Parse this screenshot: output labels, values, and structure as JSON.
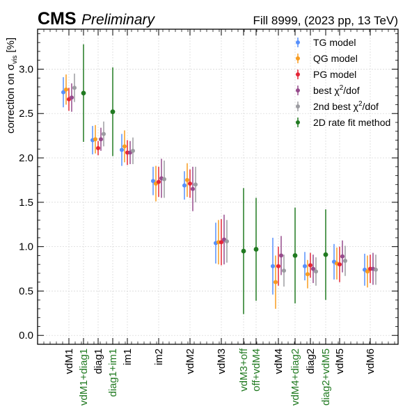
{
  "header": {
    "cms": "CMS",
    "preliminary": "Preliminary",
    "run_info": "Fill 8999, (2023 pp, 13 TeV)"
  },
  "chart_data": {
    "type": "scatter",
    "ylabel_main": "correction on σ",
    "ylabel_sub": "vis",
    "ylabel_unit": "[%]",
    "ylim": [
      -0.1,
      3.45
    ],
    "yticks": [
      0.0,
      0.5,
      1.0,
      1.5,
      2.0,
      2.5,
      3.0
    ],
    "grid": true,
    "legend_position": "top-right",
    "categories": [
      {
        "label": "vdM1",
        "highlight": false
      },
      {
        "label": "vdM1+diag1",
        "highlight": true
      },
      {
        "label": "diag1",
        "highlight": false
      },
      {
        "label": "diag1+im1",
        "highlight": true
      },
      {
        "label": "im1",
        "highlight": false
      },
      {
        "label": "im2",
        "highlight": false
      },
      {
        "label": "vdM2",
        "highlight": false
      },
      {
        "label": "vdM3",
        "highlight": false
      },
      {
        "label": "vdM3+off",
        "highlight": true
      },
      {
        "label": "off+vdM4",
        "highlight": true
      },
      {
        "label": "vdM4",
        "highlight": false
      },
      {
        "label": "vdM4+diag2",
        "highlight": true
      },
      {
        "label": "diag2",
        "highlight": false
      },
      {
        "label": "diag2+vdM5",
        "highlight": true
      },
      {
        "label": "vdM5",
        "highlight": false
      },
      {
        "label": "vdM6",
        "highlight": false
      }
    ],
    "series": [
      {
        "name": "TG model",
        "color": "#5790fc",
        "group": "model",
        "points": [
          {
            "cat": "vdM1",
            "y": 2.74,
            "err": 0.17
          },
          {
            "cat": "diag1",
            "y": 2.2,
            "err": 0.16
          },
          {
            "cat": "im1",
            "y": 2.09,
            "err": 0.18
          },
          {
            "cat": "im2",
            "y": 1.74,
            "err": 0.16
          },
          {
            "cat": "vdM2",
            "y": 1.69,
            "err": 0.16
          },
          {
            "cat": "vdM3",
            "y": 1.04,
            "err": 0.23
          },
          {
            "cat": "vdM4",
            "y": 0.78,
            "err": 0.32
          },
          {
            "cat": "diag2",
            "y": 0.78,
            "err": 0.16
          },
          {
            "cat": "vdM5",
            "y": 0.83,
            "err": 0.2
          },
          {
            "cat": "vdM6",
            "y": 0.74,
            "err": 0.18
          }
        ]
      },
      {
        "name": "QG model",
        "color": "#f89c20",
        "group": "model",
        "points": [
          {
            "cat": "vdM1",
            "y": 2.77,
            "err": 0.17
          },
          {
            "cat": "diag1",
            "y": 2.21,
            "err": 0.16
          },
          {
            "cat": "im1",
            "y": 2.13,
            "err": 0.18
          },
          {
            "cat": "im2",
            "y": 1.71,
            "err": 0.2
          },
          {
            "cat": "vdM2",
            "y": 1.75,
            "err": 0.19
          },
          {
            "cat": "vdM3",
            "y": 1.05,
            "err": 0.25
          },
          {
            "cat": "vdM4",
            "y": 0.6,
            "err": 0.3
          },
          {
            "cat": "diag2",
            "y": 0.69,
            "err": 0.16
          },
          {
            "cat": "vdM5",
            "y": 0.81,
            "err": 0.18
          },
          {
            "cat": "vdM6",
            "y": 0.72,
            "err": 0.18
          }
        ]
      },
      {
        "name": "PG model",
        "color": "#e42536",
        "group": "model",
        "points": [
          {
            "cat": "vdM1",
            "y": 2.66,
            "err": 0.13
          },
          {
            "cat": "diag1",
            "y": 2.11,
            "err": 0.08
          },
          {
            "cat": "im1",
            "y": 2.06,
            "err": 0.14
          },
          {
            "cat": "im2",
            "y": 1.73,
            "err": 0.17
          },
          {
            "cat": "vdM2",
            "y": 1.71,
            "err": 0.16
          },
          {
            "cat": "vdM3",
            "y": 1.05,
            "err": 0.26
          },
          {
            "cat": "vdM4",
            "y": 0.78,
            "err": 0.22
          },
          {
            "cat": "diag2",
            "y": 0.79,
            "err": 0.14
          },
          {
            "cat": "vdM5",
            "y": 0.8,
            "err": 0.2
          },
          {
            "cat": "vdM6",
            "y": 0.75,
            "err": 0.16
          }
        ]
      },
      {
        "name": "best χ²/dof",
        "name_base": "best χ",
        "name_sup": "2",
        "name_tail": "/dof",
        "color": "#964a8b",
        "group": "model",
        "points": [
          {
            "cat": "vdM1",
            "y": 2.68,
            "err": 0.16
          },
          {
            "cat": "diag1",
            "y": 2.21,
            "err": 0.13
          },
          {
            "cat": "im1",
            "y": 2.06,
            "err": 0.13
          },
          {
            "cat": "im2",
            "y": 1.77,
            "err": 0.22
          },
          {
            "cat": "vdM2",
            "y": 1.65,
            "err": 0.25
          },
          {
            "cat": "vdM3",
            "y": 1.08,
            "err": 0.28
          },
          {
            "cat": "vdM4",
            "y": 0.9,
            "err": 0.22
          },
          {
            "cat": "diag2",
            "y": 0.75,
            "err": 0.16
          },
          {
            "cat": "vdM5",
            "y": 0.89,
            "err": 0.18
          },
          {
            "cat": "vdM6",
            "y": 0.75,
            "err": 0.18
          }
        ]
      },
      {
        "name": "2nd best χ²/dof",
        "name_base": "2nd best χ",
        "name_sup": "2",
        "name_tail": "/dof",
        "color": "#9c9ca1",
        "group": "model",
        "points": [
          {
            "cat": "vdM1",
            "y": 2.79,
            "err": 0.16
          },
          {
            "cat": "diag1",
            "y": 2.27,
            "err": 0.14
          },
          {
            "cat": "im1",
            "y": 2.08,
            "err": 0.15
          },
          {
            "cat": "im2",
            "y": 1.76,
            "err": 0.21
          },
          {
            "cat": "vdM2",
            "y": 1.7,
            "err": 0.2
          },
          {
            "cat": "vdM3",
            "y": 1.06,
            "err": 0.24
          },
          {
            "cat": "vdM4",
            "y": 0.73,
            "err": 0.18
          },
          {
            "cat": "diag2",
            "y": 0.72,
            "err": 0.16
          },
          {
            "cat": "vdM5",
            "y": 0.84,
            "err": 0.17
          },
          {
            "cat": "vdM6",
            "y": 0.74,
            "err": 0.17
          }
        ]
      },
      {
        "name": "2D rate fit method",
        "color": "#217a21",
        "group": "fit",
        "points": [
          {
            "cat": "vdM1+diag1",
            "y": 2.73,
            "err": 0.55
          },
          {
            "cat": "diag1+im1",
            "y": 2.52,
            "err": 0.5
          },
          {
            "cat": "vdM3+off",
            "y": 0.95,
            "err": 0.71
          },
          {
            "cat": "off+vdM4",
            "y": 0.97,
            "err": 0.58
          },
          {
            "cat": "vdM4+diag2",
            "y": 0.9,
            "err": 0.54
          },
          {
            "cat": "diag2+vdM5",
            "y": 0.91,
            "err": 0.51
          }
        ]
      }
    ],
    "label_colors": {
      "normal": "#000000",
      "highlight": "#217a21"
    }
  }
}
